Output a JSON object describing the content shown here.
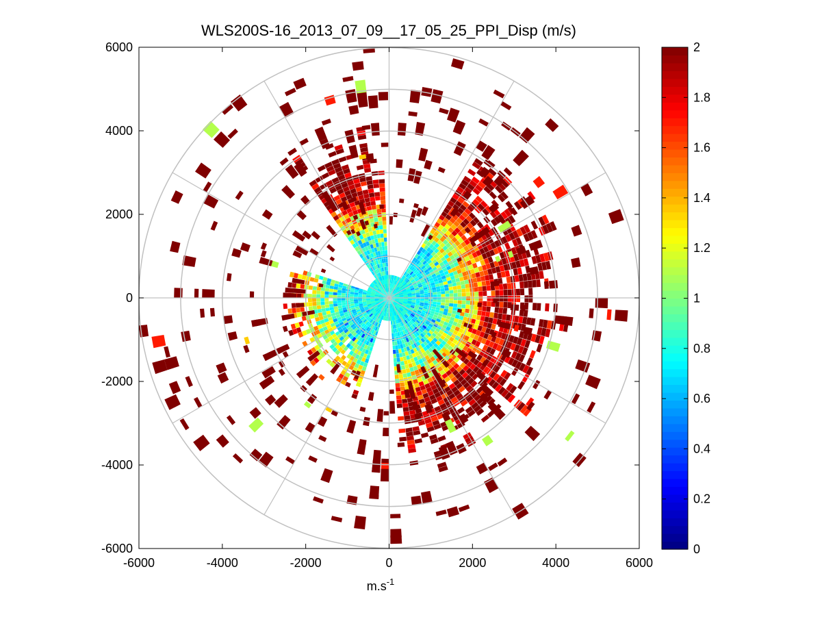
{
  "chart_data": {
    "type": "heatmap",
    "subtype": "polar-ppi-scan",
    "title": "WLS200S-16_2013_07_09__17_05_25_PPI_Disp (m/s)",
    "xlabel_base": "m.s",
    "xlabel_sup": "-1",
    "ylabel": "",
    "xlim": [
      -6000,
      6000
    ],
    "ylim": [
      -6000,
      6000
    ],
    "x_ticks": [
      -6000,
      -4000,
      -2000,
      0,
      2000,
      4000,
      6000
    ],
    "y_ticks": [
      6000,
      4000,
      2000,
      0,
      -2000,
      -4000,
      -6000
    ],
    "x_tick_labels": [
      "-6000",
      "-4000",
      "-2000",
      "0",
      "2000",
      "4000",
      "6000"
    ],
    "y_tick_labels": [
      "6000",
      "4000",
      "2000",
      "0",
      "-2000",
      "-4000",
      "-6000"
    ],
    "polar_grid_ranges_m": [
      1000,
      2000,
      3000,
      4000,
      5000,
      6000
    ],
    "polar_spokes_deg": [
      0,
      30,
      60,
      90,
      120,
      150,
      180,
      210,
      240,
      270,
      300,
      330
    ],
    "colorbar": {
      "colormap": "jet",
      "clim": [
        0,
        2
      ],
      "ticks": [
        0,
        0.2,
        0.4,
        0.6,
        0.8,
        1,
        1.2,
        1.4,
        1.6,
        1.8,
        2
      ],
      "tick_labels": [
        "0",
        "0.2",
        "0.4",
        "0.6",
        "0.8",
        "1",
        "1.2",
        "1.4",
        "1.6",
        "1.8",
        "2"
      ]
    },
    "sectors": [
      {
        "name": "north-west",
        "az_start_deg": 325,
        "az_end_deg": 358,
        "r_max_m": 3700
      },
      {
        "name": "east",
        "az_start_deg": 32,
        "az_end_deg": 175,
        "r_max_m": 3800
      },
      {
        "name": "south-west",
        "az_start_deg": 198,
        "az_end_deg": 287,
        "r_max_m": 2300
      }
    ],
    "value_profile": [
      {
        "range_m": 0,
        "value": 0.8
      },
      {
        "range_m": 1000,
        "value": 0.75
      },
      {
        "range_m": 1500,
        "value": 0.95
      },
      {
        "range_m": 2000,
        "value": 1.35
      },
      {
        "range_m": 2500,
        "value": 1.9
      },
      {
        "range_m": 3000,
        "value": 2.0
      }
    ],
    "max_range_m": 6000,
    "range_gate_m": 100,
    "beam_width_deg": 3
  }
}
